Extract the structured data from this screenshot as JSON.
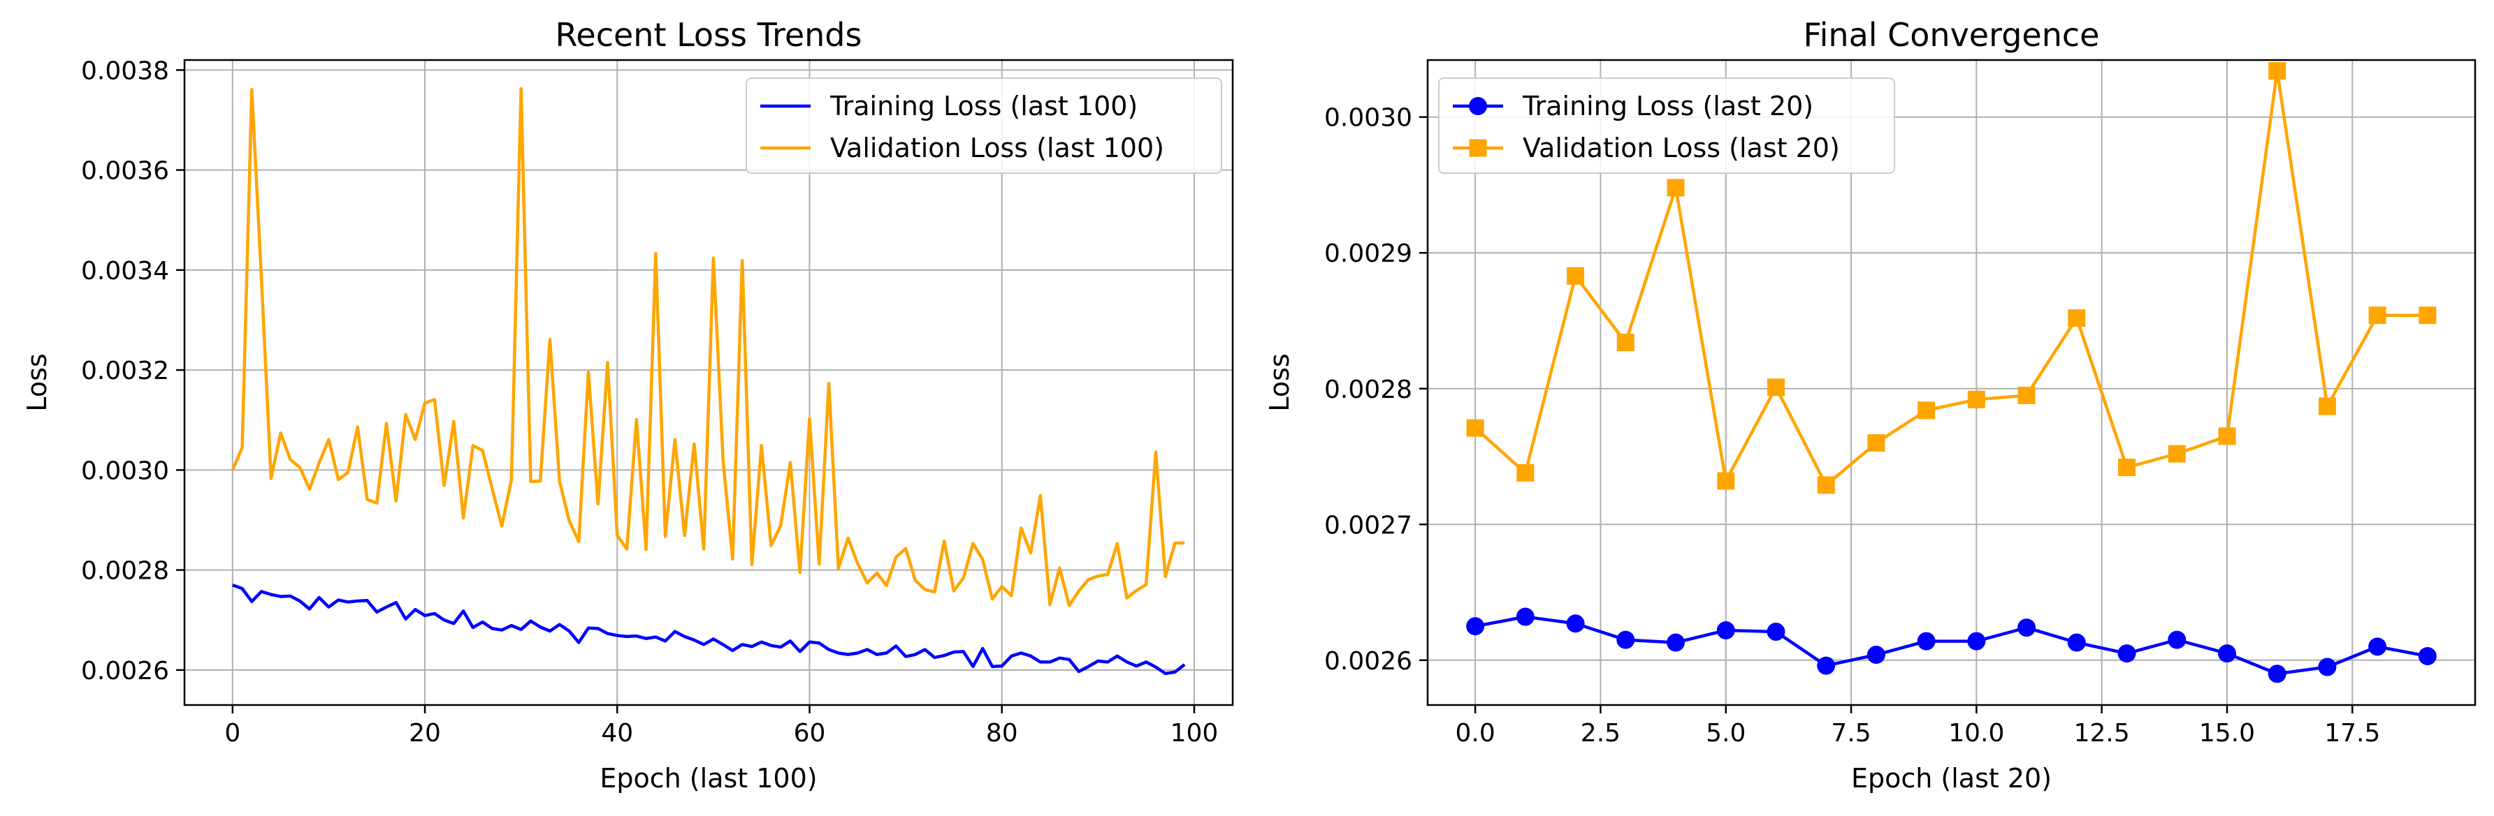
{
  "chart_data": [
    {
      "type": "line",
      "title": "Recent Loss Trends",
      "xlabel": "Epoch (last 100)",
      "ylabel": "Loss",
      "xlim": [
        -5,
        104
      ],
      "ylim": [
        0.00253,
        0.00382
      ],
      "xticks": [
        0,
        20,
        40,
        60,
        80,
        100
      ],
      "xtick_labels": [
        "0",
        "20",
        "40",
        "60",
        "80",
        "100"
      ],
      "yticks": [
        0.0026,
        0.0028,
        0.003,
        0.0032,
        0.0034,
        0.0036,
        0.0038
      ],
      "ytick_labels": [
        "0.0026",
        "0.0028",
        "0.0030",
        "0.0032",
        "0.0034",
        "0.0036",
        "0.0038"
      ],
      "grid": true,
      "legend": "top-right",
      "series": [
        {
          "name": "Training Loss (last 100)",
          "color": "#0000ff",
          "marker": "none",
          "x_start": 0,
          "values": [
            0.00277,
            0.002763,
            0.002737,
            0.002757,
            0.002751,
            0.002747,
            0.002748,
            0.002738,
            0.002722,
            0.002745,
            0.002726,
            0.00274,
            0.002736,
            0.002738,
            0.002739,
            0.002716,
            0.002726,
            0.002735,
            0.002702,
            0.002721,
            0.002709,
            0.002713,
            0.0027,
            0.002693,
            0.002718,
            0.002685,
            0.002696,
            0.002683,
            0.00268,
            0.002689,
            0.002681,
            0.002698,
            0.002686,
            0.002678,
            0.002691,
            0.002678,
            0.002655,
            0.002684,
            0.002683,
            0.002673,
            0.002669,
            0.002667,
            0.002668,
            0.002663,
            0.002666,
            0.002658,
            0.002677,
            0.002667,
            0.00266,
            0.002651,
            0.002662,
            0.002651,
            0.002639,
            0.002651,
            0.002647,
            0.002656,
            0.002649,
            0.002646,
            0.002658,
            0.002637,
            0.002656,
            0.002654,
            0.002641,
            0.002634,
            0.002631,
            0.002634,
            0.002641,
            0.002631,
            0.002634,
            0.002648,
            0.002627,
            0.002631,
            0.002641,
            0.002625,
            0.002629,
            0.002636,
            0.002637,
            0.002607,
            0.002643,
            0.002607,
            0.002608,
            0.002628,
            0.002634,
            0.002628,
            0.002616,
            0.002616,
            0.002624,
            0.002621,
            0.002597,
            0.002607,
            0.002618,
            0.002616,
            0.002628,
            0.002616,
            0.002608,
            0.002616,
            0.002606,
            0.002593,
            0.002596,
            0.002611
          ]
        },
        {
          "name": "Validation Loss (last 100)",
          "color": "#ffa500",
          "marker": "none",
          "x_start": 0,
          "values": [
            0.003,
            0.003045,
            0.003761,
            0.003383,
            0.002983,
            0.003074,
            0.003021,
            0.003005,
            0.002962,
            0.003014,
            0.003061,
            0.002981,
            0.002995,
            0.003086,
            0.002941,
            0.002934,
            0.003093,
            0.002938,
            0.003111,
            0.003061,
            0.003134,
            0.003141,
            0.002969,
            0.003097,
            0.002904,
            0.003049,
            0.003039,
            0.002962,
            0.002888,
            0.002981,
            0.003763,
            0.002977,
            0.002978,
            0.003261,
            0.002978,
            0.002899,
            0.002857,
            0.003196,
            0.002932,
            0.003215,
            0.002869,
            0.002842,
            0.003101,
            0.002841,
            0.003433,
            0.002867,
            0.003061,
            0.002869,
            0.003052,
            0.002842,
            0.003424,
            0.003021,
            0.002822,
            0.003419,
            0.002811,
            0.003049,
            0.002849,
            0.002889,
            0.003015,
            0.002795,
            0.003103,
            0.002812,
            0.003173,
            0.002803,
            0.002864,
            0.002813,
            0.002774,
            0.002794,
            0.002769,
            0.002826,
            0.002843,
            0.002779,
            0.002761,
            0.002756,
            0.002858,
            0.002758,
            0.002784,
            0.002853,
            0.002821,
            0.002742,
            0.002767,
            0.002749,
            0.002884,
            0.002834,
            0.002949,
            0.002731,
            0.002804,
            0.002729,
            0.002758,
            0.002781,
            0.002788,
            0.002791,
            0.002853,
            0.002744,
            0.002759,
            0.002771,
            0.003036,
            0.002787,
            0.002854,
            0.002854
          ]
        }
      ]
    },
    {
      "type": "line",
      "title": "Final Convergence",
      "xlabel": "Epoch (last 20)",
      "ylabel": "Loss",
      "xlim": [
        -0.95,
        19.95
      ],
      "ylim": [
        0.002567,
        0.003042
      ],
      "xticks": [
        0,
        2.5,
        5,
        7.5,
        10,
        12.5,
        15,
        17.5
      ],
      "xtick_labels": [
        "0.0",
        "2.5",
        "5.0",
        "7.5",
        "10.0",
        "12.5",
        "15.0",
        "17.5"
      ],
      "yticks": [
        0.0026,
        0.0027,
        0.0028,
        0.0029,
        0.003
      ],
      "ytick_labels": [
        "0.0026",
        "0.0027",
        "0.0028",
        "0.0029",
        "0.0030"
      ],
      "grid": true,
      "legend": "top-left",
      "series": [
        {
          "name": "Training Loss (last 20)",
          "color": "#0000ff",
          "marker": "circle",
          "x_start": 0,
          "values": [
            0.002625,
            0.002632,
            0.002627,
            0.002615,
            0.002613,
            0.002622,
            0.002621,
            0.002596,
            0.002604,
            0.002614,
            0.002614,
            0.002624,
            0.002613,
            0.002605,
            0.002615,
            0.002605,
            0.00259,
            0.002595,
            0.00261,
            0.002603
          ]
        },
        {
          "name": "Validation Loss (last 20)",
          "color": "#ffa500",
          "marker": "square",
          "x_start": 0,
          "values": [
            0.002771,
            0.002738,
            0.002883,
            0.002834,
            0.002948,
            0.002732,
            0.002801,
            0.002729,
            0.00276,
            0.002784,
            0.002792,
            0.002795,
            0.002852,
            0.002742,
            0.002752,
            0.002765,
            0.003034,
            0.002787,
            0.002854,
            0.002854
          ]
        }
      ]
    }
  ]
}
